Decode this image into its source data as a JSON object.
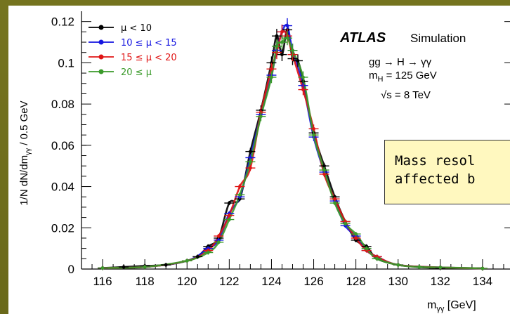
{
  "chart_data": {
    "type": "scatter",
    "title": "",
    "xlabel": "m_γγ [GeV]",
    "ylabel": "1/N dN/dm_γγ / 0.5 GeV",
    "xlim": [
      115,
      135.5
    ],
    "ylim": [
      0,
      0.125
    ],
    "xticks": [
      "116",
      "118",
      "120",
      "122",
      "124",
      "126",
      "128",
      "130",
      "132",
      "134"
    ],
    "yticks": [
      "0",
      "0.02",
      "0.04",
      "0.06",
      "0.08",
      "0.1",
      "0.12"
    ],
    "legend_position": "top-left",
    "series": [
      {
        "name": "μ < 10",
        "color": "#000000",
        "x": [
          116,
          117,
          118,
          119,
          120,
          120.5,
          121,
          121.5,
          122,
          122.5,
          123,
          123.5,
          124,
          124.25,
          124.5,
          124.75,
          125,
          125.25,
          125.5,
          126,
          126.5,
          127,
          127.5,
          128,
          128.5,
          129,
          130,
          131,
          132,
          134
        ],
        "y": [
          0.0005,
          0.001,
          0.0015,
          0.002,
          0.004,
          0.006,
          0.011,
          0.015,
          0.032,
          0.034,
          0.057,
          0.077,
          0.1,
          0.113,
          0.104,
          0.116,
          0.102,
          0.101,
          0.091,
          0.066,
          0.05,
          0.035,
          0.023,
          0.014,
          0.011,
          0.005,
          0.002,
          0.001,
          0.0005,
          0.0003
        ]
      },
      {
        "name": "10 ≤ μ < 15",
        "color": "#1515e0",
        "x": [
          116,
          118,
          120,
          121,
          121.5,
          122,
          122.5,
          123,
          123.5,
          124,
          124.25,
          124.5,
          124.75,
          125,
          125.5,
          126,
          126.5,
          127,
          127.5,
          128,
          128.5,
          129,
          130,
          132,
          134
        ],
        "y": [
          0.0005,
          0.001,
          0.004,
          0.01,
          0.014,
          0.027,
          0.035,
          0.054,
          0.075,
          0.094,
          0.106,
          0.115,
          0.118,
          0.106,
          0.089,
          0.064,
          0.047,
          0.033,
          0.021,
          0.016,
          0.009,
          0.006,
          0.002,
          0.0008,
          0.0003
        ]
      },
      {
        "name": "15 ≤ μ < 20",
        "color": "#e01515",
        "x": [
          116,
          118,
          120,
          121,
          121.5,
          122,
          122.5,
          123,
          123.5,
          124,
          124.25,
          124.5,
          124.75,
          125,
          125.5,
          126,
          126.5,
          127,
          127.5,
          128,
          128.5,
          129,
          130,
          132,
          134
        ],
        "y": [
          0.0005,
          0.001,
          0.004,
          0.009,
          0.016,
          0.026,
          0.04,
          0.049,
          0.076,
          0.097,
          0.105,
          0.115,
          0.113,
          0.104,
          0.087,
          0.068,
          0.046,
          0.034,
          0.023,
          0.015,
          0.009,
          0.006,
          0.002,
          0.0008,
          0.0003
        ]
      },
      {
        "name": "20 ≤ μ",
        "color": "#3a9a2a",
        "x": [
          116,
          118,
          120,
          121,
          121.5,
          122,
          122.5,
          123,
          123.5,
          124,
          124.25,
          124.5,
          124.75,
          125,
          125.5,
          126,
          126.5,
          127,
          127.5,
          128,
          128.5,
          129,
          130,
          131,
          132,
          134
        ],
        "y": [
          0.0005,
          0.001,
          0.004,
          0.008,
          0.013,
          0.024,
          0.036,
          0.052,
          0.074,
          0.093,
          0.108,
          0.11,
          0.112,
          0.106,
          0.093,
          0.065,
          0.048,
          0.032,
          0.022,
          0.017,
          0.01,
          0.005,
          0.002,
          0.001,
          0.0008,
          0.0003
        ]
      }
    ],
    "annotations": {
      "experiment": "ATLAS",
      "subtitle": "Simulation",
      "process": "gg → H → γγ",
      "mass_line_prefix": "m",
      "mass_line_sub": "H",
      "mass_line_value": " = 125 GeV",
      "energy_prefix": "√s",
      "energy_value": " = 8 TeV"
    }
  },
  "callout": {
    "line1": "Mass resol",
    "line2": "affected b"
  }
}
